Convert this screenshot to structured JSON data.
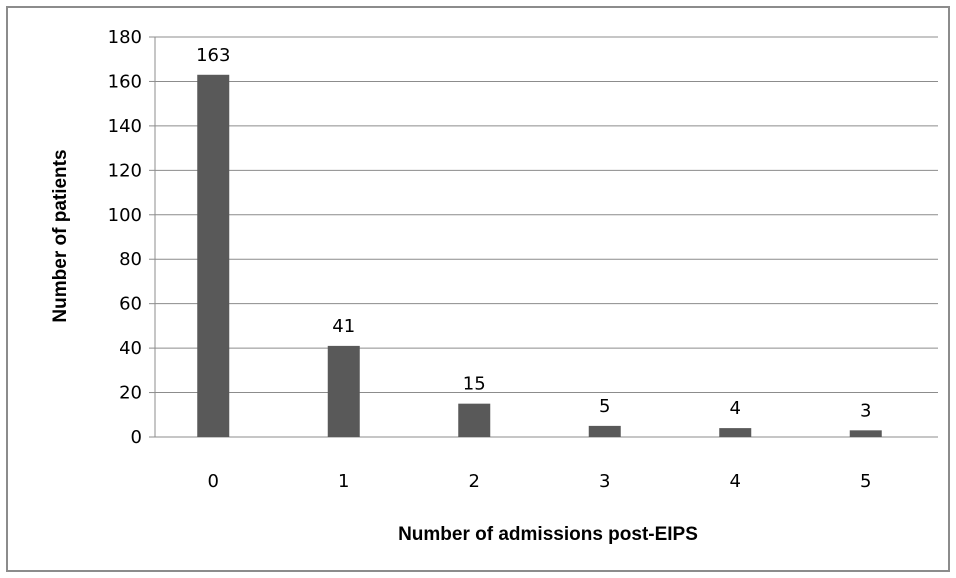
{
  "chart_data": {
    "type": "bar",
    "categories": [
      "0",
      "1",
      "2",
      "3",
      "4",
      "5"
    ],
    "values": [
      163,
      41,
      15,
      5,
      4,
      3
    ],
    "data_labels": [
      "163",
      "41",
      "15",
      "5",
      "4",
      "3"
    ],
    "title": "",
    "xlabel": "Number of admissions post-EIPS",
    "ylabel": "Number of patients",
    "ylim": [
      0,
      180
    ],
    "yticks": [
      "0",
      "20",
      "40",
      "60",
      "80",
      "100",
      "120",
      "140",
      "160",
      "180"
    ],
    "grid": true,
    "legend": "none",
    "bar_color": "#595959",
    "gridline_color": "#8c8c8c"
  }
}
